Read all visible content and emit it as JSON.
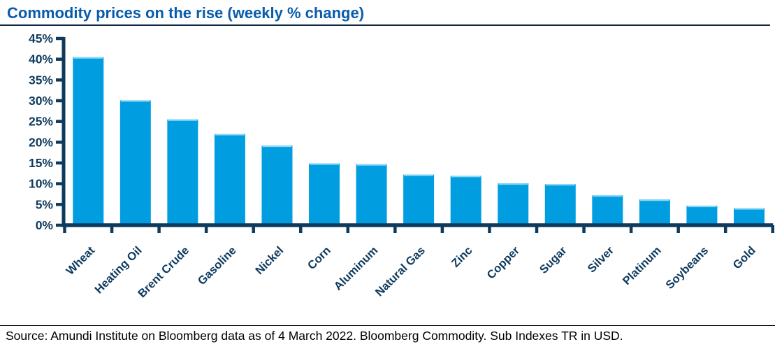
{
  "header": {
    "title": "Commodity prices on the rise (weekly % change)"
  },
  "footer": {
    "source": "Source: Amundi Institute on Bloomberg data as of 4 March 2022. Bloomberg Commodity. Sub Indexes TR in USD."
  },
  "colors": {
    "title_text": "#0a5cab",
    "bar_fill": "#009ee0",
    "bar_top_highlight": "#8fd8f7",
    "axis_navy": "#0e3a5e",
    "label_navy": "#0e3a5e",
    "footer_text": "#000000"
  },
  "chart_data": {
    "type": "bar",
    "title": "Commodity prices on the rise (weekly % change)",
    "categories": [
      "Wheat",
      "Heating Oil",
      "Brent Crude",
      "Gasoline",
      "Nickel",
      "Corn",
      "Aluminum",
      "Natural Gas",
      "Zinc",
      "Copper",
      "Sugar",
      "Silver",
      "Platinum",
      "Soybeans",
      "Gold"
    ],
    "values": [
      40.5,
      30.1,
      25.5,
      22.0,
      19.2,
      14.9,
      14.7,
      12.2,
      11.9,
      10.1,
      9.9,
      7.2,
      6.2,
      4.7,
      4.1
    ],
    "unit": "%",
    "xlabel": "",
    "ylabel": "",
    "ylim": [
      0,
      45
    ],
    "ytick_step": 5,
    "ytick_labels": [
      "0%",
      "5%",
      "10%",
      "15%",
      "20%",
      "25%",
      "30%",
      "35%",
      "40%",
      "45%"
    ],
    "grid": false,
    "legend_position": "none",
    "x_label_rotation_deg": -45
  }
}
